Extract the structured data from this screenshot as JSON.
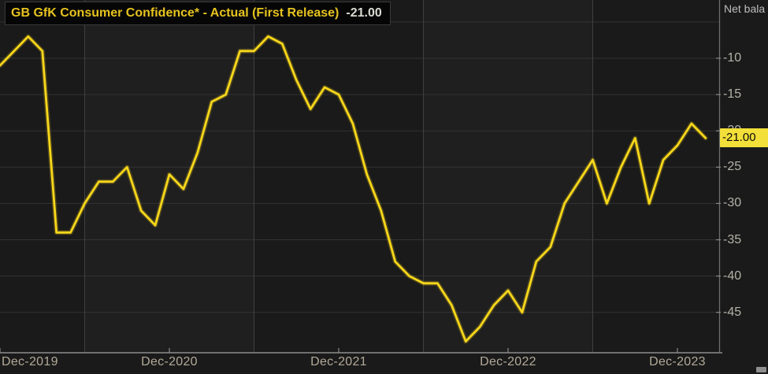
{
  "header": {
    "title": "GB GfK Consumer Confidence* - Actual (First Release)",
    "value": "-21.00"
  },
  "axis_unit_label": "Net bala",
  "current_value_badge": "-21.00",
  "colors": {
    "background": "#1a1a1a",
    "band_light": "#1f1f20",
    "band_dark": "#1a1a1a",
    "grid_horizontal": "#333333",
    "grid_vertical": "#404040",
    "axis_bottom": "#8c8c8c",
    "axis_right": "#6f6f6f",
    "tick": "#8a8a8a",
    "line": "#f8d71a",
    "badge_bg": "#f2df39",
    "badge_text": "#0a0a0a",
    "title_text": "#e6c31e",
    "title_value_text": "#dadad2",
    "y_label_text": "#b4b2a8",
    "x_label_text": "#b3aa99"
  },
  "chart_data": {
    "type": "line",
    "title": "GB GfK Consumer Confidence* - Actual (First Release)",
    "unit_label_visible": "Net bala",
    "last_value": -21.0,
    "x_months": [
      "Dec-2019",
      "Jan-2020",
      "Feb-2020",
      "Mar-2020",
      "Apr-2020",
      "May-2020",
      "Jun-2020",
      "Jul-2020",
      "Aug-2020",
      "Sep-2020",
      "Oct-2020",
      "Nov-2020",
      "Dec-2020",
      "Jan-2021",
      "Feb-2021",
      "Mar-2021",
      "Apr-2021",
      "May-2021",
      "Jun-2021",
      "Jul-2021",
      "Aug-2021",
      "Sep-2021",
      "Oct-2021",
      "Nov-2021",
      "Dec-2021",
      "Jan-2022",
      "Feb-2022",
      "Mar-2022",
      "Apr-2022",
      "May-2022",
      "Jun-2022",
      "Jul-2022",
      "Aug-2022",
      "Sep-2022",
      "Oct-2022",
      "Nov-2022",
      "Dec-2022",
      "Jan-2023",
      "Feb-2023",
      "Mar-2023",
      "Apr-2023",
      "May-2023",
      "Jun-2023",
      "Jul-2023",
      "Aug-2023",
      "Sep-2023",
      "Oct-2023",
      "Nov-2023",
      "Dec-2023",
      "Jan-2024",
      "Feb-2024"
    ],
    "series": [
      {
        "name": "GB GfK Consumer Confidence* - Actual (First Release)",
        "values": [
          -11,
          -9,
          -7,
          -9,
          -34,
          -34,
          -30,
          -27,
          -27,
          -25,
          -31,
          -33,
          -26,
          -28,
          -23,
          -16,
          -15,
          -9,
          -9,
          -7,
          -8,
          -13,
          -17,
          -14,
          -15,
          -19,
          -26,
          -31,
          -38,
          -40,
          -41,
          -41,
          -44,
          -49,
          -47,
          -44,
          -42,
          -45,
          -38,
          -36,
          -30,
          -27,
          -24,
          -30,
          -25,
          -21,
          -30,
          -24,
          -22,
          -19,
          -21
        ]
      }
    ],
    "x_tick_labels": [
      "Dec-2019",
      "Dec-2020",
      "Dec-2021",
      "Dec-2022",
      "Dec-2023"
    ],
    "x_tick_month_indices": [
      0,
      12,
      24,
      36,
      48
    ],
    "vertical_gridline_month_indices": [
      6,
      18,
      30,
      42
    ],
    "y_ticks": [
      -10,
      -15,
      -20,
      -25,
      -30,
      -35,
      -40,
      -45
    ],
    "ylim_visible": [
      -50.5,
      -2
    ],
    "grid": true,
    "legend_position": "top-left"
  }
}
